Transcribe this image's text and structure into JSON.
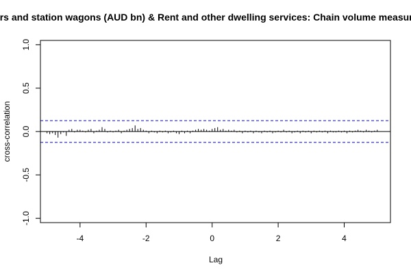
{
  "chart_data": {
    "type": "bar",
    "title": "Cars and station wagons (AUD bn) & Rent and other dwelling services: Chain volume measures",
    "xlabel": "Lag",
    "ylabel": "cross-correlation",
    "xlim": [
      -5.2,
      5.4
    ],
    "ylim": [
      -1.05,
      1.05
    ],
    "x_ticks": [
      -4,
      -2,
      0,
      2,
      4
    ],
    "x_tick_labels": [
      "-4",
      "-2",
      "0",
      "2",
      "4"
    ],
    "y_ticks": [
      -1.0,
      -0.5,
      0.0,
      0.5,
      1.0
    ],
    "y_tick_labels": [
      "-1.0",
      "-0.5",
      "0.0",
      "0.5",
      "1.0"
    ],
    "confidence_bound": 0.125,
    "grid": false,
    "colors": {
      "bars": "#000000",
      "zero_line": "#000000",
      "confidence": "#0000ff"
    },
    "x": [
      -5.0,
      -4.917,
      -4.833,
      -4.75,
      -4.667,
      -4.583,
      -4.5,
      -4.417,
      -4.333,
      -4.25,
      -4.167,
      -4.083,
      -4.0,
      -3.917,
      -3.833,
      -3.75,
      -3.667,
      -3.583,
      -3.5,
      -3.417,
      -3.333,
      -3.25,
      -3.167,
      -3.083,
      -3.0,
      -2.917,
      -2.833,
      -2.75,
      -2.667,
      -2.583,
      -2.5,
      -2.417,
      -2.333,
      -2.25,
      -2.167,
      -2.083,
      -2.0,
      -1.917,
      -1.833,
      -1.75,
      -1.667,
      -1.583,
      -1.5,
      -1.417,
      -1.333,
      -1.25,
      -1.167,
      -1.083,
      -1.0,
      -0.917,
      -0.833,
      -0.75,
      -0.667,
      -0.583,
      -0.5,
      -0.417,
      -0.333,
      -0.25,
      -0.167,
      -0.083,
      0.0,
      0.083,
      0.167,
      0.25,
      0.333,
      0.417,
      0.5,
      0.583,
      0.667,
      0.75,
      0.833,
      0.917,
      1.0,
      1.083,
      1.167,
      1.25,
      1.333,
      1.417,
      1.5,
      1.583,
      1.667,
      1.75,
      1.833,
      1.917,
      2.0,
      2.083,
      2.167,
      2.25,
      2.333,
      2.417,
      2.5,
      2.583,
      2.667,
      2.75,
      2.833,
      2.917,
      3.0,
      3.083,
      3.167,
      3.25,
      3.333,
      3.417,
      3.5,
      3.583,
      3.667,
      3.75,
      3.833,
      3.917,
      4.0,
      4.083,
      4.167,
      4.25,
      4.333,
      4.417,
      4.5,
      4.583,
      4.667,
      4.75,
      4.833,
      4.917,
      5.0
    ],
    "values": [
      -0.02,
      -0.03,
      -0.02,
      -0.04,
      -0.07,
      -0.03,
      -0.01,
      -0.05,
      0.02,
      0.03,
      -0.01,
      0.02,
      0.02,
      0.01,
      -0.01,
      0.02,
      0.03,
      -0.02,
      0.01,
      0.02,
      0.05,
      0.03,
      -0.01,
      0.01,
      -0.01,
      0.01,
      0.02,
      -0.02,
      0.01,
      0.02,
      0.03,
      0.04,
      0.07,
      0.03,
      0.04,
      0.02,
      0.01,
      -0.02,
      0.01,
      -0.01,
      -0.02,
      0.01,
      -0.01,
      0.01,
      -0.02,
      -0.01,
      0.01,
      -0.02,
      -0.03,
      0.01,
      -0.02,
      0.01,
      -0.02,
      0.01,
      0.02,
      0.03,
      0.02,
      0.03,
      0.02,
      0.01,
      0.03,
      0.04,
      0.05,
      0.02,
      0.03,
      0.01,
      0.02,
      0.01,
      0.02,
      -0.01,
      0.01,
      -0.02,
      0.01,
      -0.01,
      0.01,
      -0.02,
      0.01,
      -0.01,
      -0.02,
      0.01,
      -0.01,
      0.01,
      -0.02,
      -0.01,
      0.01,
      -0.01,
      0.02,
      -0.01,
      0.01,
      -0.02,
      -0.01,
      0.01,
      -0.02,
      0.01,
      -0.01,
      0.01,
      -0.02,
      0.01,
      -0.01,
      0.01,
      -0.01,
      0.01,
      -0.02,
      0.01,
      -0.01,
      -0.01,
      0.01,
      -0.01,
      0.01,
      -0.02,
      0.01,
      -0.01,
      0.01,
      0.02,
      0.01,
      -0.01,
      0.02,
      0.01,
      -0.01,
      0.01,
      0.02
    ]
  }
}
